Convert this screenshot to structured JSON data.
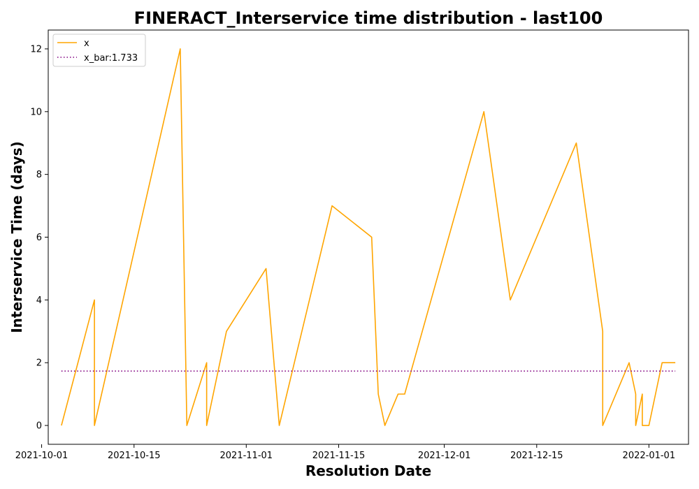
{
  "chart_data": {
    "type": "line",
    "title": "FINERACT_Interservice time distribution - last100",
    "xlabel": "Resolution Date",
    "ylabel": "Interservice Time (days)",
    "x_axis_type": "date",
    "xlim": [
      "2021-10-02",
      "2022-01-07"
    ],
    "ylim": [
      -0.6,
      12.6
    ],
    "x_ticks": [
      "2021-10-01",
      "2021-10-15",
      "2021-11-01",
      "2021-11-15",
      "2021-12-01",
      "2021-12-15",
      "2022-01-01"
    ],
    "y_ticks": [
      0,
      2,
      4,
      6,
      8,
      10,
      12
    ],
    "grid": false,
    "legend_position": "top-left",
    "series": [
      {
        "name": "x",
        "color": "#FFA500",
        "style": "solid",
        "x": [
          "2021-10-04",
          "2021-10-09",
          "2021-10-09",
          "2021-10-22",
          "2021-10-23",
          "2021-10-23",
          "2021-10-26",
          "2021-10-26",
          "2021-10-29",
          "2021-11-04",
          "2021-11-06",
          "2021-11-14",
          "2021-11-20",
          "2021-11-21",
          "2021-11-22",
          "2021-11-24",
          "2021-11-25",
          "2021-12-07",
          "2021-12-11",
          "2021-12-21",
          "2021-12-25",
          "2021-12-25",
          "2021-12-29",
          "2021-12-30",
          "2021-12-30",
          "2021-12-31",
          "2021-12-31",
          "2021-12-31",
          "2021-12-31",
          "2022-01-01",
          "2022-01-02",
          "2022-01-03",
          "2022-01-05"
        ],
        "y": [
          0,
          4,
          0,
          12,
          0,
          0,
          2,
          0,
          3,
          5,
          0,
          7,
          6,
          1,
          0,
          1,
          1,
          10,
          4,
          9,
          3,
          0,
          2,
          1,
          0,
          1,
          0,
          1,
          0,
          0,
          1,
          2,
          2
        ]
      },
      {
        "name": "x_bar:1.733",
        "color": "#800080",
        "style": "dotted",
        "x": [
          "2021-10-04",
          "2022-01-05"
        ],
        "y": [
          1.733,
          1.733
        ]
      }
    ]
  }
}
